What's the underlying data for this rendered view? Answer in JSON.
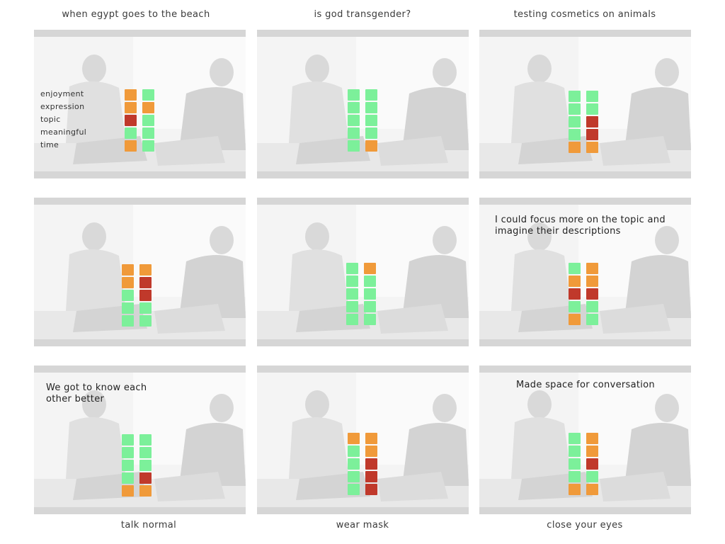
{
  "columns": [
    "when egypt goes to the beach",
    "is god transgender?",
    "testing cosmetics on animals"
  ],
  "rows": [
    "talk normal",
    "wear mask",
    "close your eyes"
  ],
  "legend": [
    "enjoyment",
    "expression",
    "topic",
    "meaningful",
    "time"
  ],
  "colors": {
    "green": "#7cf09a",
    "orange": "#f09a3a",
    "red": "#c0392b"
  },
  "panels": [
    {
      "id": "p11",
      "grid": [
        [
          "orange",
          "orange",
          "red",
          "green",
          "orange"
        ],
        [
          "green",
          "orange",
          "green",
          "green",
          "green"
        ]
      ],
      "quote": "",
      "legend": true
    },
    {
      "id": "p12",
      "grid": [
        [
          "green",
          "green",
          "green",
          "green",
          "green"
        ],
        [
          "green",
          "green",
          "green",
          "green",
          "orange"
        ]
      ],
      "quote": "",
      "legend": false
    },
    {
      "id": "p13",
      "grid": [
        [
          "green",
          "green",
          "green",
          "green",
          "orange"
        ],
        [
          "green",
          "green",
          "red",
          "red",
          "orange"
        ]
      ],
      "quote": "",
      "legend": false
    },
    {
      "id": "p21",
      "grid": [
        [
          "orange",
          "orange",
          "green",
          "green",
          "green"
        ],
        [
          "orange",
          "red",
          "red",
          "green",
          "green"
        ]
      ],
      "quote": "",
      "legend": false
    },
    {
      "id": "p22",
      "grid": [
        [
          "green",
          "green",
          "green",
          "green",
          "green"
        ],
        [
          "orange",
          "green",
          "green",
          "green",
          "green"
        ]
      ],
      "quote": "",
      "legend": false
    },
    {
      "id": "p23",
      "grid": [
        [
          "green",
          "orange",
          "red",
          "green",
          "orange"
        ],
        [
          "orange",
          "orange",
          "red",
          "green",
          "green"
        ]
      ],
      "quote": "I could focus more on the topic and\nimagine their descriptions",
      "legend": false
    },
    {
      "id": "p31",
      "grid": [
        [
          "green",
          "green",
          "green",
          "green",
          "orange"
        ],
        [
          "green",
          "green",
          "green",
          "red",
          "orange"
        ]
      ],
      "quote": "We got to know each\nother better",
      "legend": false
    },
    {
      "id": "p32",
      "grid": [
        [
          "orange",
          "green",
          "green",
          "green",
          "green"
        ],
        [
          "orange",
          "orange",
          "red",
          "red",
          "red"
        ]
      ],
      "quote": "",
      "legend": false
    },
    {
      "id": "p33",
      "grid": [
        [
          "green",
          "green",
          "green",
          "green",
          "orange"
        ],
        [
          "orange",
          "orange",
          "red",
          "green",
          "orange"
        ]
      ],
      "quote": "Made space for conversation",
      "legend": false
    }
  ]
}
